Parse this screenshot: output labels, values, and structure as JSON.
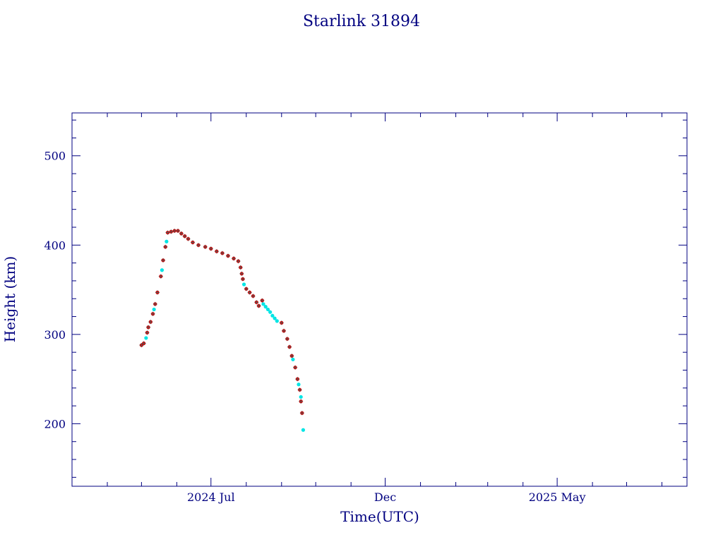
{
  "chart_data": {
    "type": "scatter",
    "title": "Starlink 31894",
    "xlabel": "Time(UTC)",
    "ylabel": "Height (km)",
    "colors": {
      "axis": "#000080",
      "primary": "#dd0000",
      "secondary": "#00e5e5",
      "marker_star": "#555555"
    },
    "xlim": [
      "2024-03-01",
      "2025-08-23"
    ],
    "ylim": [
      130,
      548
    ],
    "x_ticks": [
      {
        "date": "2024-07-01",
        "label": "2024 Jul"
      },
      {
        "date": "2024-12-01",
        "label": "Dec"
      },
      {
        "date": "2025-05-01",
        "label": "2025 May"
      }
    ],
    "y_ticks": [
      200,
      300,
      400,
      500
    ],
    "grid": false,
    "legend": "none",
    "series": [
      {
        "color": "#dd0000",
        "points": [
          [
            "2024-05-01",
            288
          ],
          [
            "2024-05-03",
            290
          ],
          [
            "2024-05-06",
            302
          ],
          [
            "2024-05-07",
            308
          ],
          [
            "2024-05-09",
            314
          ],
          [
            "2024-05-11",
            323
          ],
          [
            "2024-05-13",
            334
          ],
          [
            "2024-05-15",
            347
          ],
          [
            "2024-05-18",
            365
          ],
          [
            "2024-05-20",
            383
          ],
          [
            "2024-05-22",
            398
          ],
          [
            "2024-05-24",
            414
          ],
          [
            "2024-05-27",
            415
          ],
          [
            "2024-05-30",
            416
          ],
          [
            "2024-06-02",
            416
          ],
          [
            "2024-06-05",
            413
          ],
          [
            "2024-06-08",
            410
          ],
          [
            "2024-06-11",
            407
          ],
          [
            "2024-06-15",
            403
          ],
          [
            "2024-06-20",
            400
          ],
          [
            "2024-06-26",
            398
          ],
          [
            "2024-07-01",
            396
          ],
          [
            "2024-07-06",
            393
          ],
          [
            "2024-07-11",
            391
          ],
          [
            "2024-07-16",
            388
          ],
          [
            "2024-07-21",
            385
          ],
          [
            "2024-07-25",
            382
          ],
          [
            "2024-07-27",
            375
          ],
          [
            "2024-07-28",
            368
          ],
          [
            "2024-07-29",
            362
          ],
          [
            "2024-08-01",
            351
          ],
          [
            "2024-08-04",
            347
          ],
          [
            "2024-08-07",
            343
          ],
          [
            "2024-08-10",
            336
          ],
          [
            "2024-08-12",
            332
          ],
          [
            "2024-08-15",
            338
          ],
          [
            "2024-09-01",
            313
          ],
          [
            "2024-09-03",
            304
          ],
          [
            "2024-09-06",
            295
          ],
          [
            "2024-09-08",
            286
          ],
          [
            "2024-09-10",
            276
          ],
          [
            "2024-09-13",
            263
          ],
          [
            "2024-09-15",
            250
          ],
          [
            "2024-09-17",
            238
          ],
          [
            "2024-09-18",
            225
          ],
          [
            "2024-09-19",
            212
          ]
        ]
      },
      {
        "color": "#00e5e5",
        "points": [
          [
            "2024-05-05",
            296
          ],
          [
            "2024-05-12",
            328
          ],
          [
            "2024-05-19",
            372
          ],
          [
            "2024-05-23",
            404
          ],
          [
            "2024-07-30",
            356
          ],
          [
            "2024-08-16",
            334
          ],
          [
            "2024-08-18",
            331
          ],
          [
            "2024-08-20",
            328
          ],
          [
            "2024-08-22",
            325
          ],
          [
            "2024-08-24",
            321
          ],
          [
            "2024-08-26",
            318
          ],
          [
            "2024-08-28",
            315
          ],
          [
            "2024-09-11",
            272
          ],
          [
            "2024-09-16",
            244
          ],
          [
            "2024-09-18",
            230
          ],
          [
            "2024-09-20",
            193
          ]
        ]
      }
    ]
  }
}
